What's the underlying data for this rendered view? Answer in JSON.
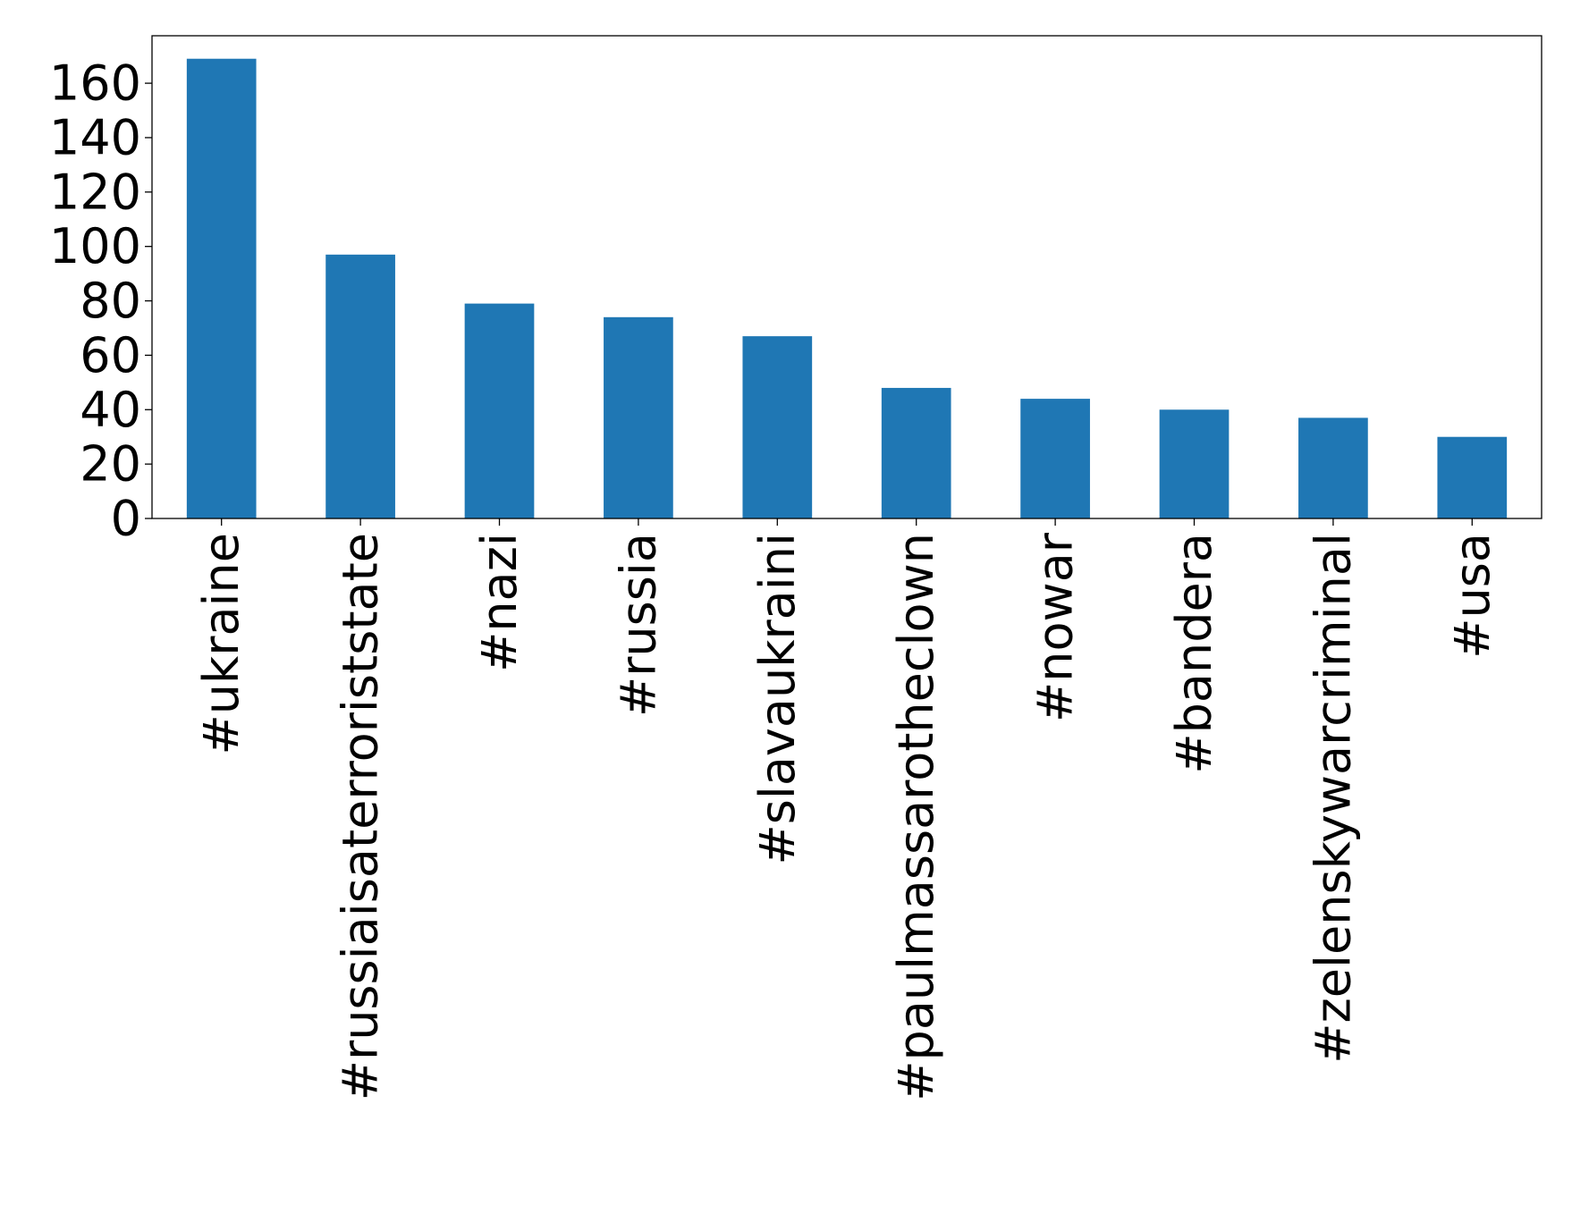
{
  "chart_data": {
    "type": "bar",
    "title": "",
    "xlabel": "",
    "ylabel": "",
    "categories": [
      "#ukraine",
      "#russiaisaterroriststate",
      "#nazi",
      "#russia",
      "#slavaukraini",
      "#paulmassarotheclown",
      "#nowar",
      "#bandera",
      "#zelenskywarcriminal",
      "#usa"
    ],
    "values": [
      169,
      97,
      79,
      74,
      67,
      48,
      44,
      40,
      37,
      30
    ],
    "ylim": [
      0,
      177.45
    ],
    "yticks": [
      0,
      20,
      40,
      60,
      80,
      100,
      120,
      140,
      160
    ],
    "ytick_labels": [
      "0",
      "20",
      "40",
      "60",
      "80",
      "100",
      "120",
      "140",
      "160"
    ],
    "bar_color": "#1f77b4",
    "grid": false,
    "legend": false
  }
}
